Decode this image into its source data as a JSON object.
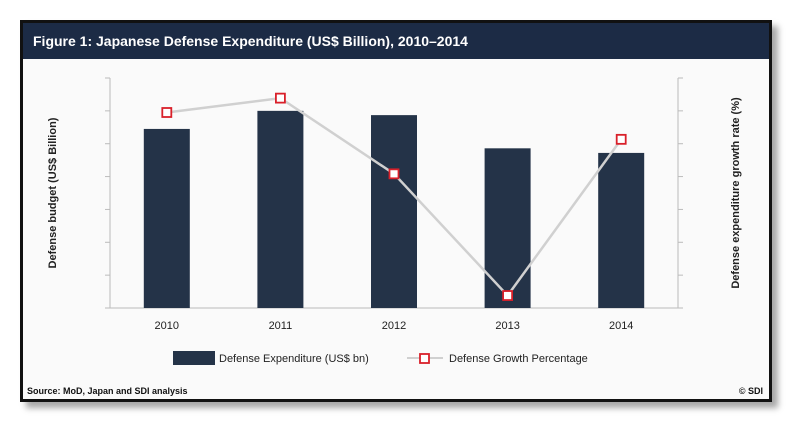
{
  "figure": {
    "title": "Figure 1: Japanese Defense Expenditure (US$ Billion), 2010–2014",
    "source": "Source: MoD, Japan and SDI analysis",
    "copyright": "© SDI"
  },
  "colors": {
    "title_bg": "#1c2b45",
    "bar": "#243348",
    "line": "#d0d0d0",
    "marker_stroke": "#d9202a",
    "marker_fill": "#ffffff"
  },
  "chart_data": {
    "type": "bar",
    "categories": [
      "2010",
      "2011",
      "2012",
      "2013",
      "2014"
    ],
    "series": [
      {
        "name": "Defense Expenditure (US$ bn)",
        "type": "bar",
        "axis": "left",
        "values": [
          54.5,
          60.0,
          58.7,
          48.6,
          47.2
        ]
      },
      {
        "name": "Defense Growth Percentage",
        "type": "line",
        "axis": "right",
        "values": [
          3.4,
          4.9,
          -3.0,
          -15.7,
          0.6
        ]
      }
    ],
    "ylabel": "Defense budget (US$ Billion)",
    "y2label": "Defense expenditure growth rate (%)",
    "ylim": [
      0,
      70
    ],
    "y2lim": [
      -17,
      7
    ],
    "grid": false,
    "legend_position": "bottom"
  }
}
